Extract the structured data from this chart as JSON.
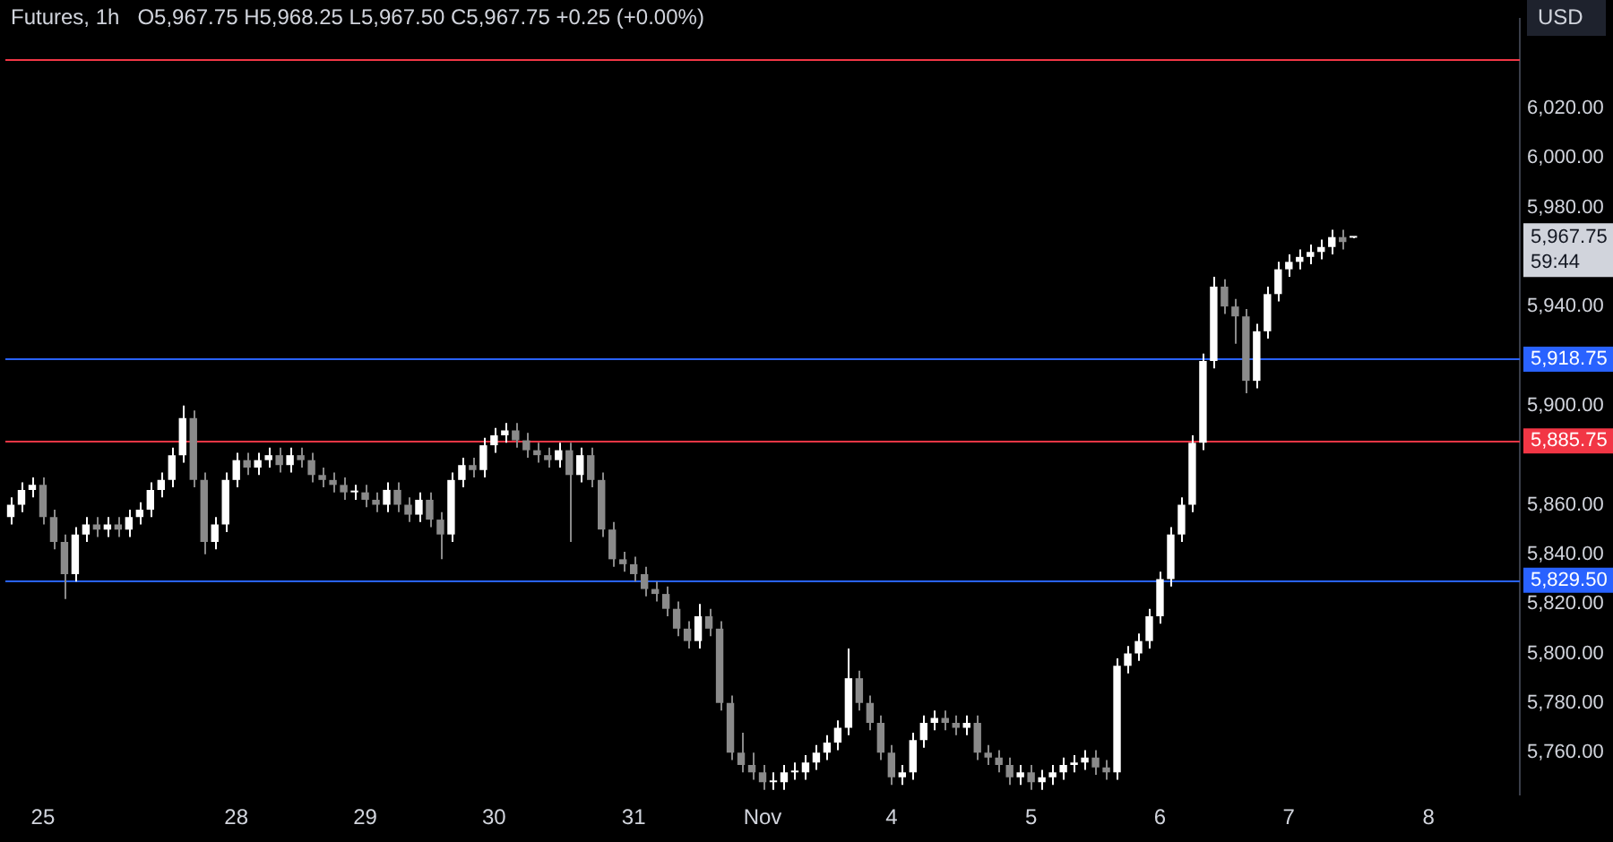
{
  "chart_data": {
    "type": "candlestick",
    "title": "Futures, 1h",
    "annotations": [
      "O5,967.75 H5,968.25 L5,967.50 C5,967.75 +0.25 (+0.00%)",
      "5,967.75",
      "59:44",
      "USD"
    ],
    "categories": [
      null,
      null,
      null,
      "25",
      null,
      null,
      null,
      null,
      null,
      null,
      null,
      null,
      null,
      null,
      null,
      null,
      null,
      null,
      null,
      null,
      null,
      "28",
      null,
      null,
      null,
      null,
      null,
      null,
      null,
      null,
      null,
      null,
      null,
      "29",
      null,
      null,
      null,
      null,
      null,
      null,
      null,
      null,
      null,
      null,
      null,
      "30",
      null,
      null,
      null,
      null,
      null,
      null,
      null,
      null,
      null,
      null,
      null,
      null,
      "31",
      null,
      null,
      null,
      null,
      null,
      null,
      null,
      null,
      null,
      null,
      null,
      "Nov",
      null,
      null,
      null,
      null,
      null,
      null,
      null,
      null,
      null,
      null,
      null,
      "4",
      null,
      null,
      null,
      null,
      null,
      null,
      null,
      null,
      null,
      null,
      null,
      null,
      "5",
      null,
      null,
      null,
      null,
      null,
      null,
      null,
      null,
      null,
      null,
      null,
      "6",
      null,
      null,
      null,
      null,
      null,
      null,
      null,
      null,
      null,
      null,
      null,
      "7",
      null,
      null,
      null,
      null,
      null,
      null,
      null,
      null,
      null,
      null,
      null,
      null,
      "8",
      null,
      null,
      null,
      null,
      null,
      null,
      null,
      null
    ],
    "ohlc": [
      [
        5855,
        5863,
        5852,
        5860
      ],
      [
        5860,
        5869,
        5857,
        5866
      ],
      [
        5866,
        5871,
        5863,
        5868
      ],
      [
        5868,
        5871,
        5852,
        5855
      ],
      [
        5855,
        5858,
        5842,
        5845
      ],
      [
        5845,
        5848,
        5822,
        5832
      ],
      [
        5832,
        5851,
        5829,
        5848
      ],
      [
        5848,
        5855,
        5845,
        5852
      ],
      [
        5852,
        5855,
        5847,
        5850
      ],
      [
        5850,
        5855,
        5847,
        5852
      ],
      [
        5852,
        5855,
        5847,
        5850
      ],
      [
        5850,
        5858,
        5847,
        5855
      ],
      [
        5855,
        5861,
        5852,
        5858
      ],
      [
        5858,
        5869,
        5855,
        5866
      ],
      [
        5866,
        5873,
        5863,
        5870
      ],
      [
        5870,
        5883,
        5867,
        5880
      ],
      [
        5880,
        5900,
        5877,
        5895
      ],
      [
        5895,
        5898,
        5867,
        5870
      ],
      [
        5870,
        5873,
        5840,
        5845
      ],
      [
        5845,
        5855,
        5842,
        5852
      ],
      [
        5852,
        5873,
        5849,
        5870
      ],
      [
        5870,
        5881,
        5867,
        5878
      ],
      [
        5878,
        5881,
        5872,
        5875
      ],
      [
        5875,
        5881,
        5872,
        5878
      ],
      [
        5878,
        5883,
        5875,
        5880
      ],
      [
        5880,
        5883,
        5873,
        5876
      ],
      [
        5876,
        5883,
        5873,
        5880
      ],
      [
        5880,
        5883,
        5875,
        5878
      ],
      [
        5878,
        5881,
        5869,
        5872
      ],
      [
        5872,
        5875,
        5867,
        5870
      ],
      [
        5870,
        5873,
        5865,
        5868
      ],
      [
        5868,
        5871,
        5862,
        5865
      ],
      [
        5865,
        5868,
        5862,
        5865
      ],
      [
        5865,
        5868,
        5859,
        5862
      ],
      [
        5862,
        5865,
        5857,
        5860
      ],
      [
        5860,
        5869,
        5857,
        5866
      ],
      [
        5866,
        5869,
        5857,
        5860
      ],
      [
        5860,
        5863,
        5853,
        5856
      ],
      [
        5856,
        5865,
        5853,
        5862
      ],
      [
        5862,
        5865,
        5851,
        5854
      ],
      [
        5854,
        5857,
        5838,
        5848
      ],
      [
        5848,
        5873,
        5845,
        5870
      ],
      [
        5870,
        5879,
        5867,
        5876
      ],
      [
        5876,
        5879,
        5871,
        5874
      ],
      [
        5874,
        5887,
        5871,
        5884
      ],
      [
        5884,
        5891,
        5881,
        5888
      ],
      [
        5888,
        5893,
        5885,
        5890
      ],
      [
        5890,
        5893,
        5883,
        5886
      ],
      [
        5886,
        5889,
        5879,
        5882
      ],
      [
        5882,
        5885,
        5877,
        5880
      ],
      [
        5880,
        5883,
        5875,
        5878
      ],
      [
        5878,
        5885,
        5875,
        5882
      ],
      [
        5882,
        5885,
        5845,
        5872
      ],
      [
        5872,
        5883,
        5869,
        5880
      ],
      [
        5880,
        5883,
        5867,
        5870
      ],
      [
        5870,
        5873,
        5847,
        5850
      ],
      [
        5850,
        5853,
        5835,
        5838
      ],
      [
        5838,
        5841,
        5833,
        5836
      ],
      [
        5836,
        5839,
        5829,
        5832
      ],
      [
        5832,
        5835,
        5823,
        5826
      ],
      [
        5826,
        5829,
        5821,
        5824
      ],
      [
        5824,
        5827,
        5815,
        5818
      ],
      [
        5818,
        5821,
        5807,
        5810
      ],
      [
        5810,
        5813,
        5802,
        5805
      ],
      [
        5805,
        5820,
        5802,
        5815
      ],
      [
        5815,
        5818,
        5807,
        5810
      ],
      [
        5810,
        5813,
        5777,
        5780
      ],
      [
        5780,
        5783,
        5757,
        5760
      ],
      [
        5760,
        5768,
        5752,
        5755
      ],
      [
        5755,
        5760,
        5749,
        5752
      ],
      [
        5752,
        5755,
        5745,
        5748
      ],
      [
        5748,
        5752,
        5745,
        5748
      ],
      [
        5748,
        5755,
        5745,
        5752
      ],
      [
        5752,
        5756,
        5749,
        5752
      ],
      [
        5752,
        5759,
        5749,
        5756
      ],
      [
        5756,
        5763,
        5753,
        5760
      ],
      [
        5760,
        5767,
        5757,
        5764
      ],
      [
        5764,
        5773,
        5761,
        5770
      ],
      [
        5770,
        5802,
        5767,
        5790
      ],
      [
        5790,
        5793,
        5777,
        5780
      ],
      [
        5780,
        5783,
        5769,
        5772
      ],
      [
        5772,
        5775,
        5757,
        5760
      ],
      [
        5760,
        5763,
        5747,
        5750
      ],
      [
        5750,
        5755,
        5747,
        5752
      ],
      [
        5752,
        5768,
        5749,
        5765
      ],
      [
        5765,
        5775,
        5762,
        5772
      ],
      [
        5772,
        5777,
        5769,
        5774
      ],
      [
        5774,
        5777,
        5769,
        5772
      ],
      [
        5772,
        5775,
        5767,
        5770
      ],
      [
        5770,
        5775,
        5767,
        5772
      ],
      [
        5772,
        5775,
        5757,
        5760
      ],
      [
        5760,
        5763,
        5755,
        5758
      ],
      [
        5758,
        5761,
        5752,
        5755
      ],
      [
        5755,
        5758,
        5747,
        5750
      ],
      [
        5750,
        5755,
        5747,
        5752
      ],
      [
        5752,
        5755,
        5745,
        5748
      ],
      [
        5748,
        5753,
        5745,
        5750
      ],
      [
        5750,
        5755,
        5747,
        5752
      ],
      [
        5752,
        5758,
        5749,
        5755
      ],
      [
        5755,
        5759,
        5752,
        5756
      ],
      [
        5756,
        5761,
        5753,
        5758
      ],
      [
        5758,
        5761,
        5751,
        5754
      ],
      [
        5754,
        5757,
        5749,
        5752
      ],
      [
        5752,
        5798,
        5749,
        5795
      ],
      [
        5795,
        5803,
        5792,
        5800
      ],
      [
        5800,
        5808,
        5797,
        5805
      ],
      [
        5805,
        5818,
        5802,
        5815
      ],
      [
        5815,
        5833,
        5812,
        5830
      ],
      [
        5830,
        5851,
        5827,
        5848
      ],
      [
        5848,
        5863,
        5845,
        5860
      ],
      [
        5860,
        5888,
        5857,
        5885
      ],
      [
        5885,
        5921,
        5882,
        5918
      ],
      [
        5918,
        5952,
        5915,
        5948
      ],
      [
        5948,
        5951,
        5937,
        5940
      ],
      [
        5940,
        5943,
        5925,
        5936
      ],
      [
        5936,
        5939,
        5905,
        5910
      ],
      [
        5910,
        5933,
        5907,
        5930
      ],
      [
        5930,
        5948,
        5927,
        5945
      ],
      [
        5945,
        5958,
        5942,
        5955
      ],
      [
        5955,
        5961,
        5952,
        5958
      ],
      [
        5958,
        5963,
        5955,
        5960
      ],
      [
        5960,
        5965,
        5957,
        5962
      ],
      [
        5962,
        5967,
        5959,
        5964
      ],
      [
        5964,
        5971,
        5961,
        5968
      ],
      [
        5968,
        5971,
        5963,
        5966
      ],
      [
        5967.75,
        5968.25,
        5967.5,
        5967.75
      ],
      null,
      null,
      null,
      null,
      null,
      null,
      null,
      null,
      null,
      null,
      null,
      null,
      null,
      null,
      null
    ],
    "colors": [
      "#ffffff",
      "#ffffff",
      "#ffffff",
      "#8a8a8a",
      "#8a8a8a",
      "#8a8a8a",
      "#ffffff",
      "#ffffff",
      "#8a8a8a",
      "#ffffff",
      "#8a8a8a",
      "#ffffff",
      "#ffffff",
      "#ffffff",
      "#ffffff",
      "#ffffff",
      "#ffffff",
      "#8a8a8a",
      "#8a8a8a",
      "#ffffff",
      "#ffffff",
      "#ffffff",
      "#8a8a8a",
      "#ffffff",
      "#ffffff",
      "#8a8a8a",
      "#ffffff",
      "#8a8a8a",
      "#8a8a8a",
      "#8a8a8a",
      "#8a8a8a",
      "#8a8a8a",
      "#ffffff",
      "#8a8a8a",
      "#8a8a8a",
      "#ffffff",
      "#8a8a8a",
      "#8a8a8a",
      "#ffffff",
      "#8a8a8a",
      "#8a8a8a",
      "#ffffff",
      "#ffffff",
      "#8a8a8a",
      "#ffffff",
      "#ffffff",
      "#ffffff",
      "#8a8a8a",
      "#8a8a8a",
      "#8a8a8a",
      "#8a8a8a",
      "#ffffff",
      "#8a8a8a",
      "#ffffff",
      "#8a8a8a",
      "#8a8a8a",
      "#8a8a8a",
      "#8a8a8a",
      "#8a8a8a",
      "#8a8a8a",
      "#8a8a8a",
      "#8a8a8a",
      "#8a8a8a",
      "#8a8a8a",
      "#ffffff",
      "#8a8a8a",
      "#8a8a8a",
      "#8a8a8a",
      "#8a8a8a",
      "#8a8a8a",
      "#8a8a8a",
      "#ffffff",
      "#ffffff",
      "#ffffff",
      "#ffffff",
      "#ffffff",
      "#ffffff",
      "#ffffff",
      "#ffffff",
      "#8a8a8a",
      "#8a8a8a",
      "#8a8a8a",
      "#8a8a8a",
      "#ffffff",
      "#ffffff",
      "#ffffff",
      "#ffffff",
      "#8a8a8a",
      "#8a8a8a",
      "#ffffff",
      "#8a8a8a",
      "#8a8a8a",
      "#8a8a8a",
      "#8a8a8a",
      "#ffffff",
      "#8a8a8a",
      "#ffffff",
      "#ffffff",
      "#ffffff",
      "#ffffff",
      "#ffffff",
      "#8a8a8a",
      "#8a8a8a",
      "#ffffff",
      "#ffffff",
      "#ffffff",
      "#ffffff",
      "#ffffff",
      "#ffffff",
      "#ffffff",
      "#ffffff",
      "#ffffff",
      "#ffffff",
      "#8a8a8a",
      "#8a8a8a",
      "#8a8a8a",
      "#ffffff",
      "#ffffff",
      "#ffffff",
      "#ffffff",
      "#ffffff",
      "#ffffff",
      "#ffffff",
      "#ffffff",
      "#8a8a8a",
      "#ffffff",
      null,
      null,
      null,
      null,
      null,
      null,
      null,
      null,
      null,
      null,
      null,
      null,
      null,
      null,
      null
    ],
    "ylim": [
      5743,
      6056
    ],
    "yticks": [
      {
        "value": 5760,
        "label": "5,760.00"
      },
      {
        "value": 5780,
        "label": "5,780.00"
      },
      {
        "value": 5800,
        "label": "5,800.00"
      },
      {
        "value": 5820,
        "label": "5,820.00"
      },
      {
        "value": 5840,
        "label": "5,840.00"
      },
      {
        "value": 5860,
        "label": "5,860.00"
      },
      {
        "value": 5900,
        "label": "5,900.00"
      },
      {
        "value": 5940,
        "label": "5,940.00"
      },
      {
        "value": 5980,
        "label": "5,980.00"
      },
      {
        "value": 6000,
        "label": "6,000.00"
      },
      {
        "value": 6020,
        "label": "6,020.00"
      }
    ],
    "ref_lines": [
      {
        "axis": "y",
        "value": 5918.75,
        "label": "5,918.75",
        "color": "#2962ff"
      },
      {
        "axis": "y",
        "value": 5829.5,
        "label": "5,829.50",
        "color": "#2962ff"
      },
      {
        "axis": "y",
        "value": 5885.75,
        "label": "5,885.75",
        "color": "#f23645"
      },
      {
        "axis": "y",
        "value": 6040,
        "label": null,
        "color": "#f23645"
      }
    ],
    "grid": false,
    "legend": false
  }
}
